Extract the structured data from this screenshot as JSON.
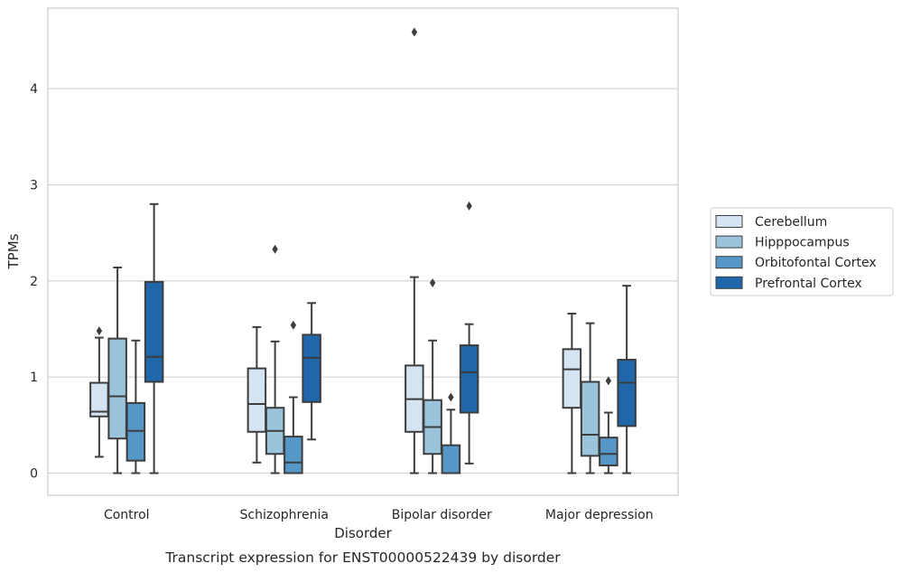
{
  "chart_data": {
    "type": "box",
    "caption": "Transcript expression for ENST00000522439 by disorder",
    "xlabel": "Disorder",
    "ylabel": "TPMs",
    "ylim": [
      -0.22,
      4.85
    ],
    "yticks": [
      0,
      1,
      2,
      3,
      4
    ],
    "grid": true,
    "legend_position": "right",
    "categories": [
      "Control",
      "Schizophrenia",
      "Bipolar disorder",
      "Major depression"
    ],
    "series": [
      {
        "name": "Cerebellum",
        "color": "#d5e4f2",
        "boxes": [
          {
            "whislo": 0.17,
            "q1": 0.59,
            "med": 0.64,
            "q3": 0.94,
            "whishi": 1.41,
            "fliers": [
              1.48
            ]
          },
          {
            "whislo": 0.11,
            "q1": 0.43,
            "med": 0.72,
            "q3": 1.09,
            "whishi": 1.52,
            "fliers": []
          },
          {
            "whislo": 0.0,
            "q1": 0.43,
            "med": 0.77,
            "q3": 1.12,
            "whishi": 2.04,
            "fliers": [
              4.59
            ]
          },
          {
            "whislo": 0.0,
            "q1": 0.68,
            "med": 1.08,
            "q3": 1.29,
            "whishi": 1.66,
            "fliers": []
          }
        ]
      },
      {
        "name": "Hipppocampus",
        "color": "#9ac3dc",
        "boxes": [
          {
            "whislo": 0.0,
            "q1": 0.36,
            "med": 0.8,
            "q3": 1.4,
            "whishi": 2.14,
            "fliers": []
          },
          {
            "whislo": 0.0,
            "q1": 0.2,
            "med": 0.44,
            "q3": 0.68,
            "whishi": 1.37,
            "fliers": [
              2.33
            ]
          },
          {
            "whislo": 0.0,
            "q1": 0.2,
            "med": 0.48,
            "q3": 0.76,
            "whishi": 1.38,
            "fliers": [
              1.98
            ]
          },
          {
            "whislo": 0.0,
            "q1": 0.18,
            "med": 0.4,
            "q3": 0.95,
            "whishi": 1.56,
            "fliers": []
          }
        ]
      },
      {
        "name": "Orbitofontal Cortex",
        "color": "#5598c8",
        "boxes": [
          {
            "whislo": 0.0,
            "q1": 0.13,
            "med": 0.44,
            "q3": 0.73,
            "whishi": 1.38,
            "fliers": []
          },
          {
            "whislo": 0.0,
            "q1": 0.0,
            "med": 0.11,
            "q3": 0.38,
            "whishi": 0.79,
            "fliers": [
              1.54
            ]
          },
          {
            "whislo": 0.0,
            "q1": 0.0,
            "med": 0.0,
            "q3": 0.29,
            "whishi": 0.66,
            "fliers": [
              0.79
            ]
          },
          {
            "whislo": 0.0,
            "q1": 0.08,
            "med": 0.2,
            "q3": 0.37,
            "whishi": 0.63,
            "fliers": [
              0.96
            ]
          }
        ]
      },
      {
        "name": "Prefrontal Cortex",
        "color": "#1f66ab",
        "boxes": [
          {
            "whislo": 0.0,
            "q1": 0.95,
            "med": 1.21,
            "q3": 1.99,
            "whishi": 2.8,
            "fliers": []
          },
          {
            "whislo": 0.35,
            "q1": 0.74,
            "med": 1.2,
            "q3": 1.44,
            "whishi": 1.77,
            "fliers": []
          },
          {
            "whislo": 0.1,
            "q1": 0.63,
            "med": 1.05,
            "q3": 1.33,
            "whishi": 1.55,
            "fliers": [
              2.78
            ]
          },
          {
            "whislo": 0.0,
            "q1": 0.49,
            "med": 0.94,
            "q3": 1.18,
            "whishi": 1.95,
            "fliers": []
          }
        ]
      }
    ]
  }
}
